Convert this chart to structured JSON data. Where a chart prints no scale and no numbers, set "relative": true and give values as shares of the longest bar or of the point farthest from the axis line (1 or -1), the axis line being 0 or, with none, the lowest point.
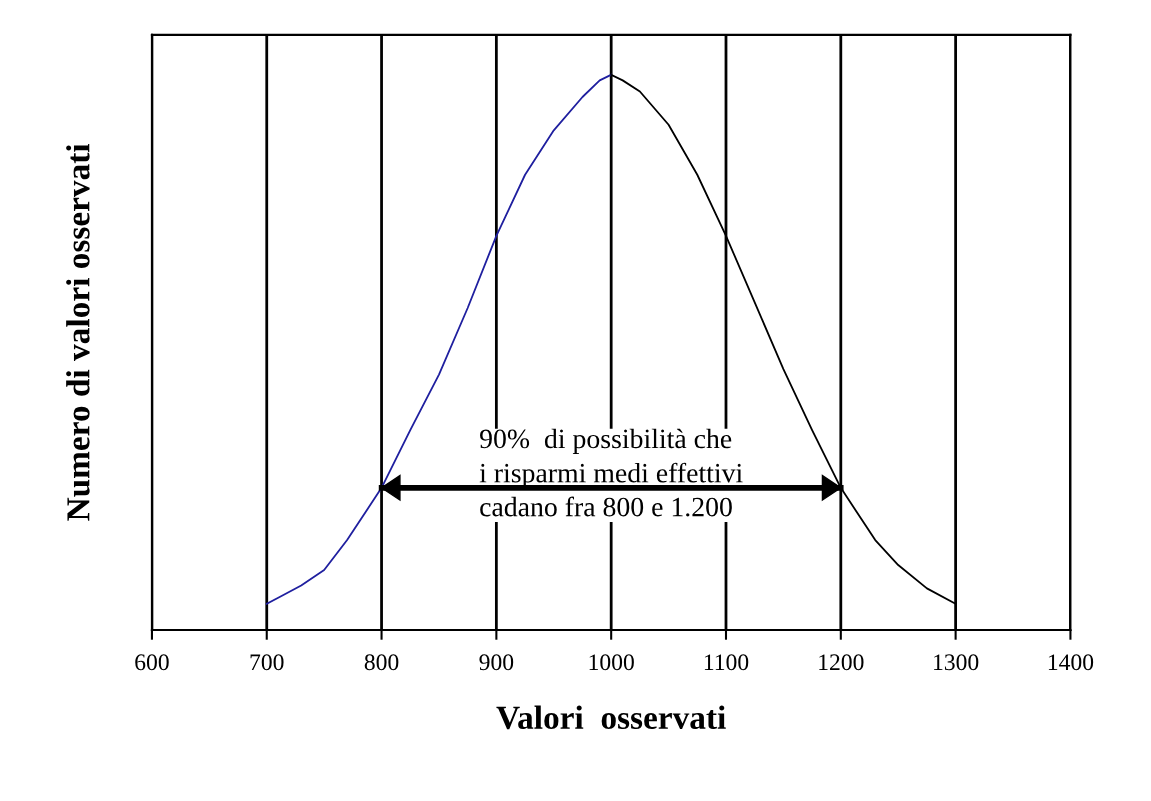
{
  "chart_data": {
    "type": "line",
    "relative": true,
    "xlabel": "Valori  osservati",
    "ylabel": "Numero di valori osservati",
    "xlim": [
      600,
      1400
    ],
    "xticks": [
      600,
      700,
      800,
      900,
      1000,
      1100,
      1200,
      1300,
      1400
    ],
    "grid": "x",
    "tick_labels": "x",
    "series": [
      {
        "color": "#1f1f9f",
        "x": [
          700,
          710,
          730,
          750,
          770,
          800,
          825,
          850,
          875,
          900,
          925,
          950,
          975,
          990,
          1000
        ],
        "values": [
          0.047,
          0.058,
          0.08,
          0.108,
          0.162,
          0.256,
          0.36,
          0.46,
          0.58,
          0.71,
          0.82,
          0.9,
          0.96,
          0.99,
          1
        ]
      },
      {
        "color": "#000000",
        "x": [
          1000,
          1010,
          1025,
          1050,
          1075,
          1100,
          1125,
          1150,
          1175,
          1200,
          1230,
          1250,
          1275,
          1300
        ],
        "values": [
          1,
          0.99,
          0.97,
          0.91,
          0.82,
          0.71,
          0.59,
          0.47,
          0.36,
          0.256,
          0.162,
          0.117,
          0.075,
          0.047
        ]
      },
      {
        "color": "#000000",
        "x": [
          800,
          1200
        ],
        "values": [
          0.256,
          0.256
        ]
      }
    ],
    "annotations": [
      {
        "text": "90%  di possibilità che\ni risparmi medi effettivi\ncadano fra 800 e 1.200",
        "x": 1000,
        "y": 0.256
      }
    ]
  }
}
